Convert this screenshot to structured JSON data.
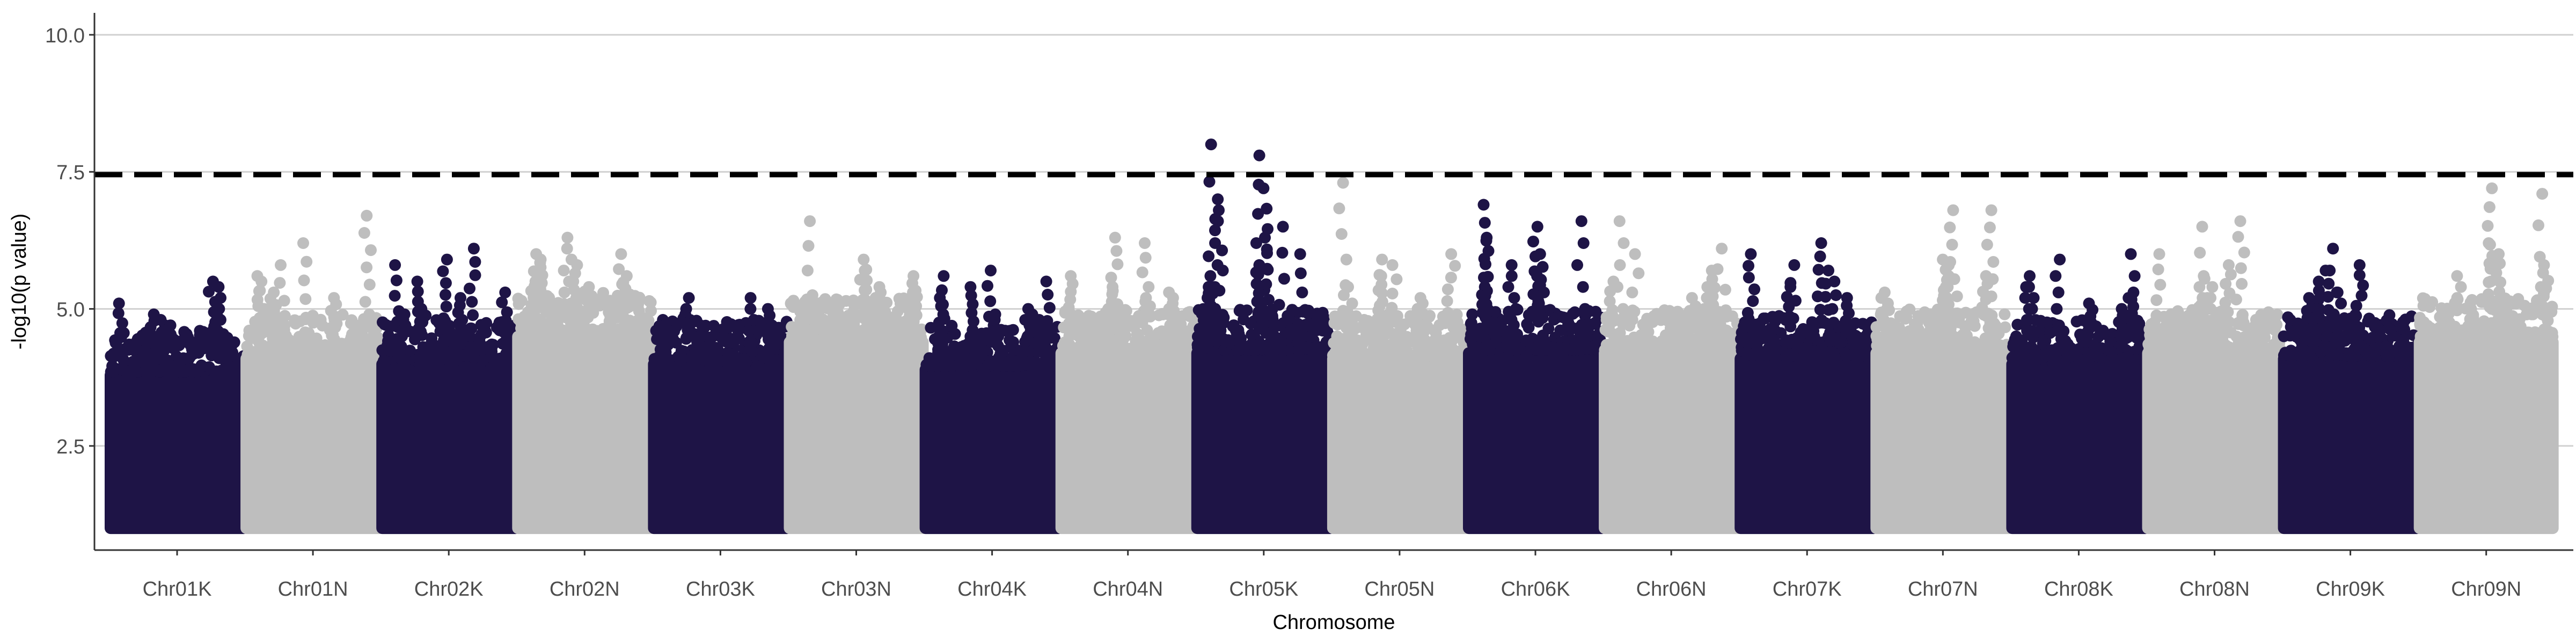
{
  "chart_data": {
    "type": "scatter",
    "subtype": "manhattan",
    "title": "",
    "xlabel": "Chromosome",
    "ylabel": "-log10(p value)",
    "ylim": [
      0.6,
      10.4
    ],
    "yticks": [
      2.5,
      5.0,
      7.5,
      10.0
    ],
    "ytick_labels": [
      "2.5",
      "5.0",
      "7.5",
      "10.0"
    ],
    "grid": "horizontal major gridlines",
    "legend": "none",
    "threshold": {
      "value": 7.45,
      "style": "dashed",
      "color": "#000000"
    },
    "series_colors": {
      "K": "#1e1446",
      "N": "#bebebe"
    },
    "baseline_min": 1.0,
    "categories": [
      "Chr01K",
      "Chr01N",
      "Chr02K",
      "Chr02N",
      "Chr03K",
      "Chr03N",
      "Chr04K",
      "Chr04N",
      "Chr05K",
      "Chr05N",
      "Chr06K",
      "Chr06N",
      "Chr07K",
      "Chr07N",
      "Chr08K",
      "Chr08N",
      "Chr09K",
      "Chr09N"
    ],
    "chromosomes": [
      {
        "name": "Chr01K",
        "color": "K",
        "bulk_top": 4.2,
        "peaks": [
          5.4,
          5.5,
          5.1,
          5.0,
          4.9,
          4.8,
          4.7,
          4.6
        ]
      },
      {
        "name": "Chr01N",
        "color": "N",
        "bulk_top": 4.5,
        "peaks": [
          6.7,
          6.2,
          5.8,
          5.6,
          5.5,
          5.3,
          5.2,
          5.0
        ]
      },
      {
        "name": "Chr02K",
        "color": "K",
        "bulk_top": 4.4,
        "peaks": [
          5.9,
          6.1,
          5.8,
          5.5,
          5.3,
          5.2,
          5.0,
          4.9
        ]
      },
      {
        "name": "Chr02N",
        "color": "N",
        "bulk_top": 4.9,
        "peaks": [
          6.3,
          6.0,
          6.0,
          5.9,
          5.8,
          5.6,
          5.5,
          5.4
        ]
      },
      {
        "name": "Chr03K",
        "color": "K",
        "bulk_top": 4.4,
        "peaks": [
          5.2,
          5.2,
          5.0,
          4.9,
          4.8,
          4.7,
          4.6
        ]
      },
      {
        "name": "Chr03N",
        "color": "N",
        "bulk_top": 4.8,
        "peaks": [
          6.6,
          5.9,
          5.7,
          5.6,
          5.4,
          5.3,
          5.2,
          5.1
        ]
      },
      {
        "name": "Chr04K",
        "color": "K",
        "bulk_top": 4.3,
        "peaks": [
          5.6,
          5.7,
          5.5,
          5.4,
          5.2,
          5.0,
          4.9,
          4.8
        ]
      },
      {
        "name": "Chr04N",
        "color": "N",
        "bulk_top": 4.6,
        "peaks": [
          6.3,
          6.2,
          5.6,
          5.4,
          5.3,
          5.2,
          5.0
        ]
      },
      {
        "name": "Chr05K",
        "color": "K",
        "bulk_top": 4.6,
        "peaks": [
          7.2,
          7.0,
          6.8,
          6.5,
          6.3,
          6.0,
          5.8,
          5.6,
          5.4,
          8.0,
          7.8
        ]
      },
      {
        "name": "Chr05N",
        "color": "N",
        "bulk_top": 4.5,
        "peaks": [
          7.3,
          6.0,
          5.9,
          5.8,
          5.6,
          5.4,
          5.2
        ]
      },
      {
        "name": "Chr06K",
        "color": "K",
        "bulk_top": 4.6,
        "peaks": [
          6.5,
          6.9,
          6.6,
          6.3,
          6.0,
          5.8,
          5.6,
          5.4
        ]
      },
      {
        "name": "Chr06N",
        "color": "N",
        "bulk_top": 4.6,
        "peaks": [
          6.6,
          6.1,
          6.0,
          5.7,
          5.5,
          5.4,
          5.2
        ]
      },
      {
        "name": "Chr07K",
        "color": "K",
        "bulk_top": 4.5,
        "peaks": [
          6.2,
          6.0,
          5.8,
          5.7,
          5.5,
          5.4,
          5.2
        ]
      },
      {
        "name": "Chr07N",
        "color": "N",
        "bulk_top": 4.6,
        "peaks": [
          6.8,
          6.8,
          5.9,
          5.8,
          5.6,
          5.4,
          5.3
        ]
      },
      {
        "name": "Chr08K",
        "color": "K",
        "bulk_top": 4.4,
        "peaks": [
          5.9,
          6.0,
          5.6,
          5.4,
          5.3,
          5.1,
          5.0
        ]
      },
      {
        "name": "Chr08N",
        "color": "N",
        "bulk_top": 4.6,
        "peaks": [
          6.6,
          6.5,
          6.0,
          5.8,
          5.6,
          5.4,
          5.2
        ]
      },
      {
        "name": "Chr09K",
        "color": "K",
        "bulk_top": 4.5,
        "peaks": [
          5.8,
          6.1,
          5.7,
          5.5,
          5.3,
          5.2,
          5.0
        ]
      },
      {
        "name": "Chr09N",
        "color": "N",
        "bulk_top": 4.8,
        "peaks": [
          7.2,
          7.1,
          6.2,
          6.0,
          5.8,
          5.6,
          5.4
        ]
      }
    ]
  }
}
